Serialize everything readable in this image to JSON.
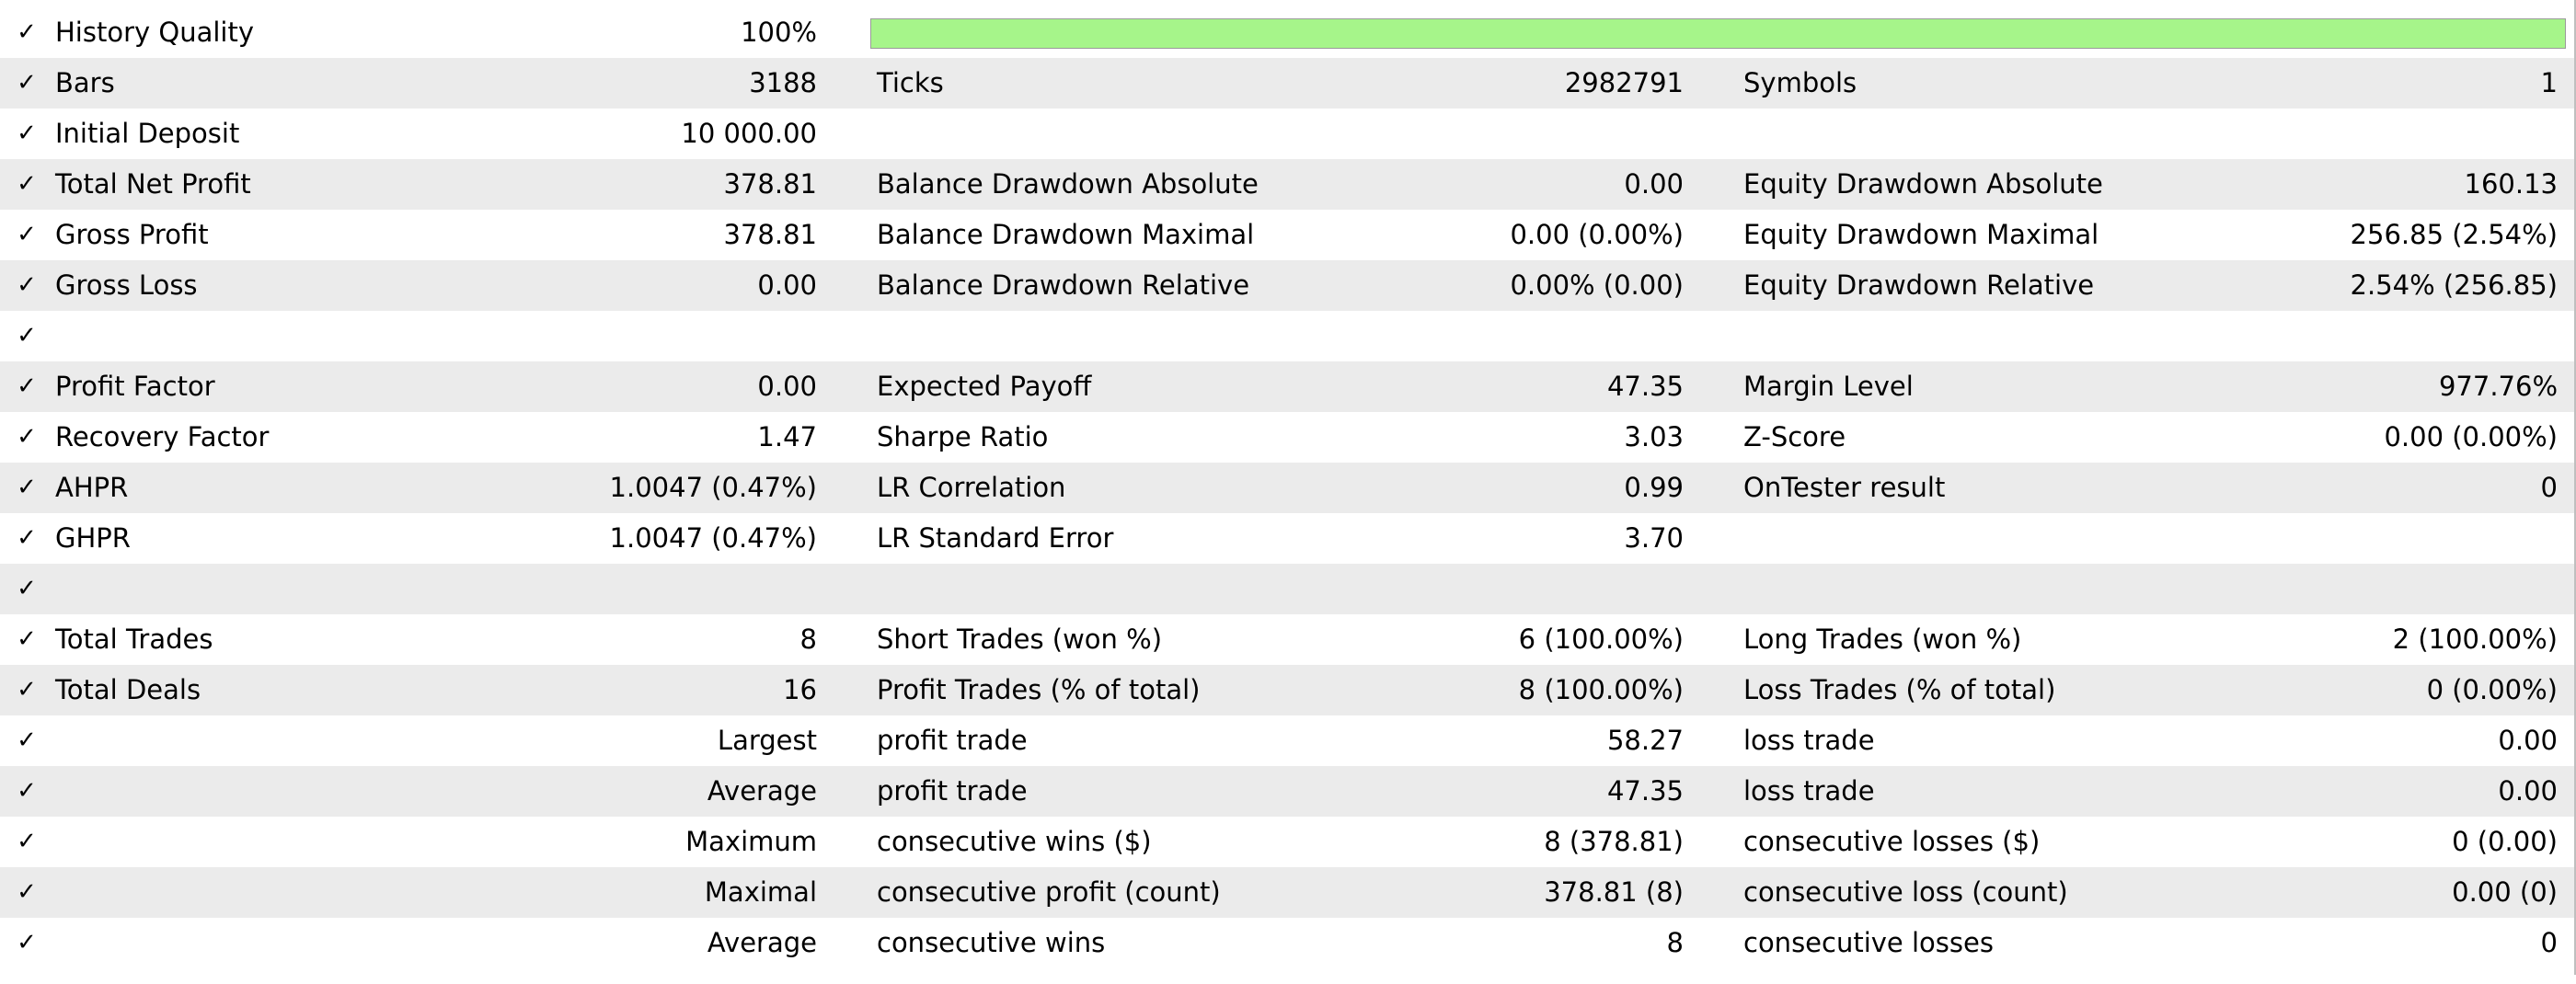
{
  "report": {
    "check_glyph": "✓",
    "history_quality": {
      "label": "History Quality",
      "value": "100%",
      "fill_fraction": 1.0,
      "bar_color": "#a6f58a"
    },
    "bars": {
      "label": "Bars",
      "value": "3188"
    },
    "ticks": {
      "label": "Ticks",
      "value": "2982791"
    },
    "symbols": {
      "label": "Symbols",
      "value": "1"
    },
    "initial_deposit": {
      "label": "Initial Deposit",
      "value": "10 000.00"
    },
    "total_net_profit": {
      "label": "Total Net Profit",
      "value": "378.81"
    },
    "balance_dd_abs": {
      "label": "Balance Drawdown Absolute",
      "value": "0.00"
    },
    "equity_dd_abs": {
      "label": "Equity Drawdown Absolute",
      "value": "160.13"
    },
    "gross_profit": {
      "label": "Gross Profit",
      "value": "378.81"
    },
    "balance_dd_max": {
      "label": "Balance Drawdown Maximal",
      "value": "0.00 (0.00%)"
    },
    "equity_dd_max": {
      "label": "Equity Drawdown Maximal",
      "value": "256.85 (2.54%)"
    },
    "gross_loss": {
      "label": "Gross Loss",
      "value": "0.00"
    },
    "balance_dd_rel": {
      "label": "Balance Drawdown Relative",
      "value": "0.00% (0.00)"
    },
    "equity_dd_rel": {
      "label": "Equity Drawdown Relative",
      "value": "2.54% (256.85)"
    },
    "profit_factor": {
      "label": "Profit Factor",
      "value": "0.00"
    },
    "expected_payoff": {
      "label": "Expected Payoff",
      "value": "47.35"
    },
    "margin_level": {
      "label": "Margin Level",
      "value": "977.76%"
    },
    "recovery_factor": {
      "label": "Recovery Factor",
      "value": "1.47"
    },
    "sharpe_ratio": {
      "label": "Sharpe Ratio",
      "value": "3.03"
    },
    "z_score": {
      "label": "Z-Score",
      "value": "0.00 (0.00%)"
    },
    "ahpr": {
      "label": "AHPR",
      "value": "1.0047 (0.47%)"
    },
    "lr_correlation": {
      "label": "LR Correlation",
      "value": "0.99"
    },
    "ontester": {
      "label": "OnTester result",
      "value": "0"
    },
    "ghpr": {
      "label": "GHPR",
      "value": "1.0047 (0.47%)"
    },
    "lr_std_error": {
      "label": "LR Standard Error",
      "value": "3.70"
    },
    "total_trades": {
      "label": "Total Trades",
      "value": "8"
    },
    "short_trades": {
      "label": "Short Trades (won %)",
      "value": "6 (100.00%)"
    },
    "long_trades": {
      "label": "Long Trades (won %)",
      "value": "2 (100.00%)"
    },
    "total_deals": {
      "label": "Total Deals",
      "value": "16"
    },
    "profit_trades": {
      "label": "Profit Trades (% of total)",
      "value": "8 (100.00%)"
    },
    "loss_trades": {
      "label": "Loss Trades (% of total)",
      "value": "0 (0.00%)"
    },
    "largest": {
      "prefix": "Largest",
      "profit_label": "profit trade",
      "profit_value": "58.27",
      "loss_label": "loss trade",
      "loss_value": "0.00"
    },
    "average": {
      "prefix": "Average",
      "profit_label": "profit trade",
      "profit_value": "47.35",
      "loss_label": "loss trade",
      "loss_value": "0.00"
    },
    "maximum": {
      "prefix": "Maximum",
      "profit_label": "consecutive wins ($)",
      "profit_value": "8 (378.81)",
      "loss_label": "consecutive losses ($)",
      "loss_value": "0 (0.00)"
    },
    "maximal": {
      "prefix": "Maximal",
      "profit_label": "consecutive profit (count)",
      "profit_value": "378.81 (8)",
      "loss_label": "consecutive loss (count)",
      "loss_value": "0.00 (0)"
    },
    "average_consec": {
      "prefix": "Average",
      "profit_label": "consecutive wins",
      "profit_value": "8",
      "loss_label": "consecutive losses",
      "loss_value": "0"
    }
  }
}
